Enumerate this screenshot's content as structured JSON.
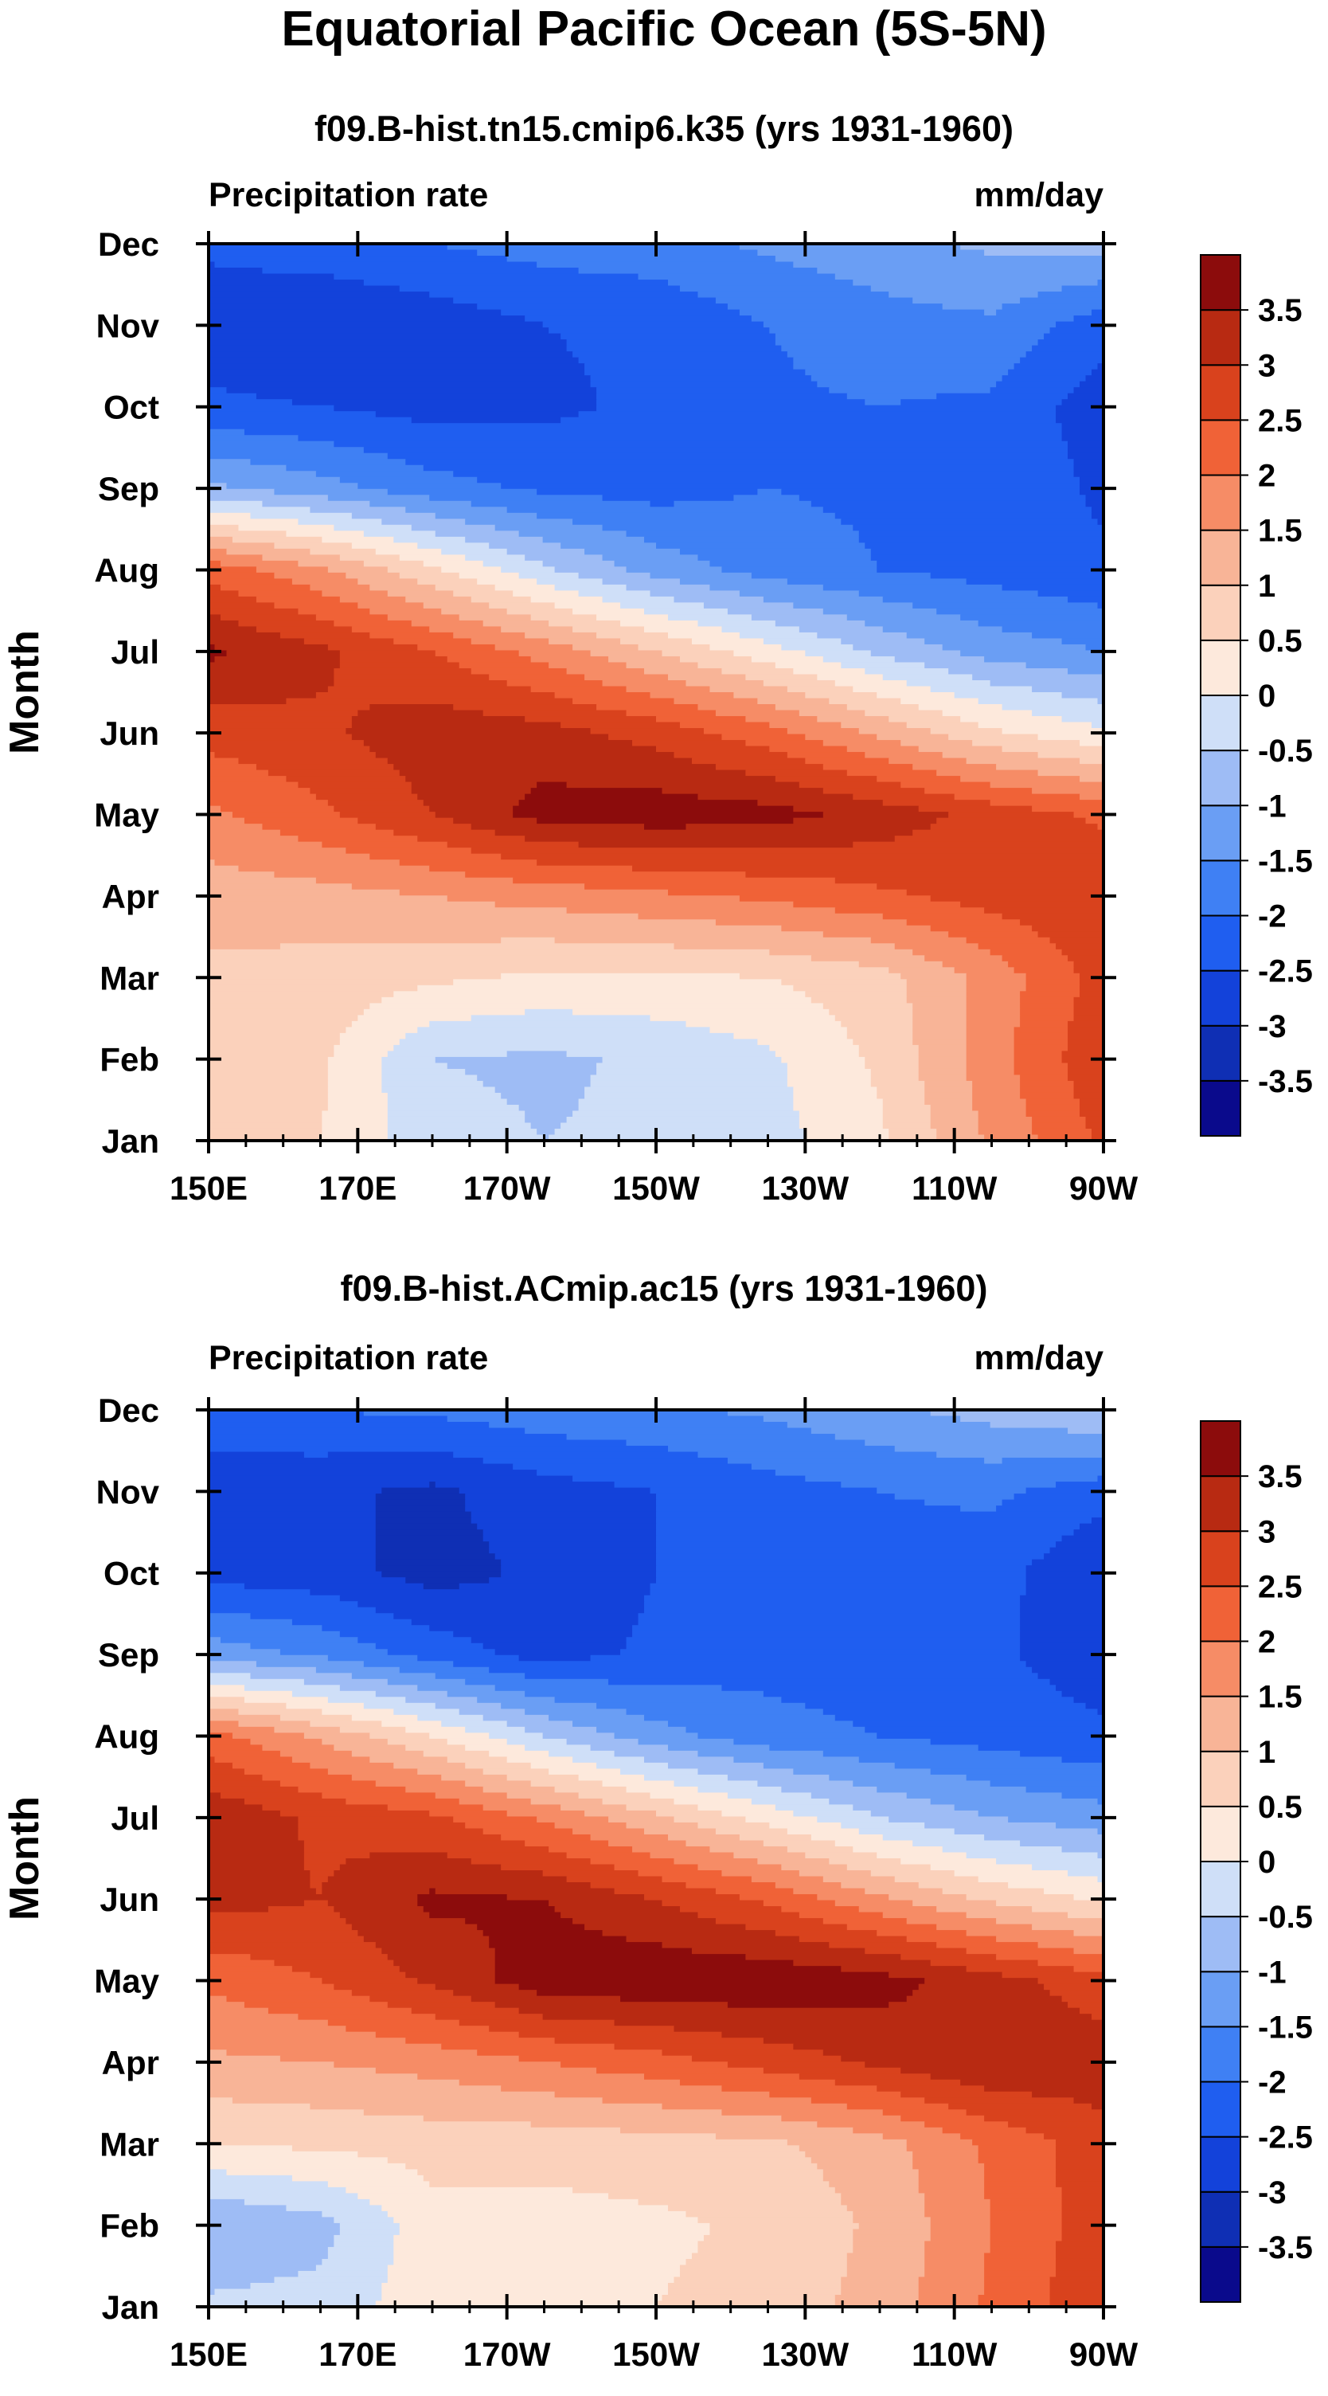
{
  "title": "Equatorial Pacific Ocean (5S-5N)",
  "chart_data": [
    {
      "type": "heatmap",
      "title": "f09.B-hist.tn15.cmip6.k35 (yrs 1931-1960)",
      "left_label": "Precipitation rate",
      "right_label": "mm/day",
      "xlabel": "",
      "ylabel": "Month",
      "x_ticks": [
        "150E",
        "170E",
        "170W",
        "150W",
        "130W",
        "110W",
        "90W"
      ],
      "x_range": [
        150,
        270
      ],
      "y_ticks": [
        "Jan",
        "Feb",
        "Mar",
        "Apr",
        "May",
        "Jun",
        "Jul",
        "Aug",
        "Sep",
        "Oct",
        "Nov",
        "Dec"
      ],
      "field": [
        [
          0.8,
          0.5,
          -0.3,
          -0.5,
          -0.4,
          -0.2,
          0.4,
          1.6,
          2.6
        ],
        [
          0.6,
          0.6,
          -0.5,
          -0.6,
          -0.4,
          -0.1,
          0.6,
          1.8,
          2.9
        ],
        [
          0.9,
          0.8,
          0.6,
          0.4,
          0.4,
          0.5,
          0.8,
          1.7,
          2.7
        ],
        [
          1.2,
          1.3,
          1.5,
          1.7,
          1.9,
          2.1,
          2.4,
          2.7,
          3.0
        ],
        [
          1.9,
          2.4,
          3.0,
          3.7,
          3.8,
          3.7,
          3.3,
          2.8,
          2.4
        ],
        [
          2.7,
          2.9,
          3.3,
          3.2,
          2.8,
          2.2,
          1.4,
          0.6,
          0.1
        ],
        [
          3.6,
          3.1,
          2.5,
          1.8,
          1.0,
          0.2,
          -0.6,
          -1.2,
          -1.5
        ],
        [
          2.3,
          1.6,
          0.6,
          -0.4,
          -1.2,
          -1.7,
          -2.0,
          -2.2,
          -2.4
        ],
        [
          -0.9,
          -1.3,
          -1.8,
          -2.1,
          -2.2,
          -2.0,
          -2.1,
          -2.1,
          -2.6
        ],
        [
          -2.4,
          -2.5,
          -2.7,
          -2.6,
          -2.4,
          -2.1,
          -2.0,
          -2.1,
          -2.8
        ],
        [
          -2.8,
          -3.0,
          -2.8,
          -2.5,
          -2.4,
          -2.0,
          -1.7,
          -1.6,
          -2.3
        ],
        [
          -2.4,
          -2.2,
          -2.0,
          -1.8,
          -1.7,
          -1.4,
          -1.2,
          -0.9,
          -0.8
        ]
      ]
    },
    {
      "type": "heatmap",
      "title": "f09.B-hist.ACmip.ac15 (yrs 1931-1960)",
      "left_label": "Precipitation rate",
      "right_label": "mm/day",
      "xlabel": "",
      "ylabel": "Month",
      "x_ticks": [
        "150E",
        "170E",
        "170W",
        "150W",
        "130W",
        "110W",
        "90W"
      ],
      "x_range": [
        150,
        270
      ],
      "y_ticks": [
        "Jan",
        "Feb",
        "Mar",
        "Apr",
        "May",
        "Jun",
        "Jul",
        "Aug",
        "Sep",
        "Oct",
        "Nov",
        "Dec"
      ],
      "field": [
        [
          -0.4,
          -0.3,
          0.3,
          0.4,
          0.5,
          0.7,
          1.2,
          2.1,
          2.9
        ],
        [
          -1.0,
          -0.7,
          0.3,
          0.3,
          0.4,
          0.6,
          1.1,
          2.0,
          2.8
        ],
        [
          0.5,
          0.6,
          0.7,
          0.7,
          0.8,
          0.9,
          1.3,
          2.1,
          2.8
        ],
        [
          1.4,
          1.5,
          1.7,
          2.0,
          2.3,
          2.7,
          3.1,
          3.5,
          3.3
        ],
        [
          2.1,
          2.5,
          3.1,
          3.8,
          3.9,
          3.9,
          3.7,
          3.2,
          2.7
        ],
        [
          3.2,
          3.0,
          3.6,
          3.5,
          3.0,
          2.4,
          1.6,
          0.9,
          0.4
        ],
        [
          3.4,
          2.9,
          2.6,
          1.9,
          1.1,
          0.3,
          -0.5,
          -1.0,
          -1.3
        ],
        [
          2.2,
          1.4,
          0.5,
          -0.5,
          -1.3,
          -1.8,
          -2.0,
          -2.2,
          -2.4
        ],
        [
          -1.2,
          -1.6,
          -2.2,
          -2.7,
          -2.4,
          -2.2,
          -2.3,
          -2.4,
          -2.8
        ],
        [
          -2.7,
          -2.8,
          -3.2,
          -2.9,
          -2.5,
          -2.3,
          -2.2,
          -2.3,
          -3.0
        ],
        [
          -2.8,
          -2.9,
          -3.1,
          -2.7,
          -2.5,
          -2.2,
          -2.0,
          -1.9,
          -2.3
        ],
        [
          -2.2,
          -2.0,
          -1.9,
          -1.7,
          -1.6,
          -1.4,
          -1.1,
          -0.8,
          -0.5
        ]
      ]
    }
  ],
  "colorbar": {
    "levels": [
      "-3.5",
      "-3",
      "-2.5",
      "-2",
      "-1.5",
      "-1",
      "-0.5",
      "0",
      "0.5",
      "1",
      "1.5",
      "2",
      "2.5",
      "3",
      "3.5"
    ],
    "level_values": [
      -3.5,
      -3,
      -2.5,
      -2,
      -1.5,
      -1,
      -0.5,
      0,
      0.5,
      1,
      1.5,
      2,
      2.5,
      3,
      3.5
    ],
    "colors": [
      "#0a0a8c",
      "#0f2fb4",
      "#1342da",
      "#1f5ef0",
      "#3f80f4",
      "#6a9ef4",
      "#9ebcf5",
      "#cfdff8",
      "#fde9dc",
      "#fbd1bb",
      "#f8b497",
      "#f68c66",
      "#f06237",
      "#d9421d",
      "#b82a12",
      "#8c0c0c"
    ]
  }
}
